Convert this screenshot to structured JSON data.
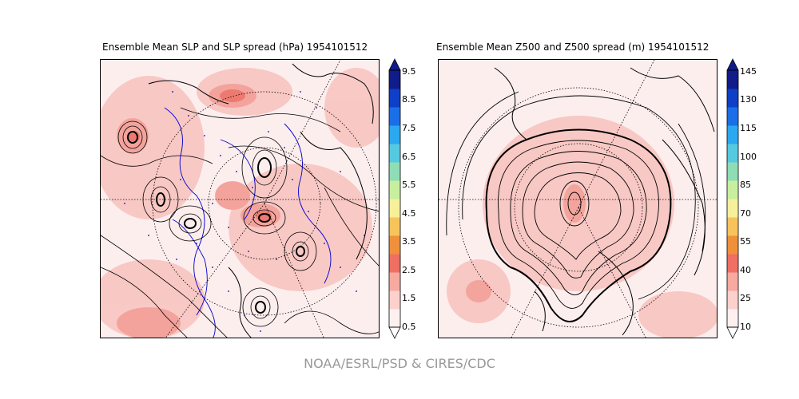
{
  "panels": [
    {
      "title": "Ensemble Mean SLP and SLP spread (hPa) 1954101512",
      "colorbar_ticks": [
        "9.5",
        "8.5",
        "7.5",
        "6.5",
        "5.5",
        "4.5",
        "3.5",
        "2.5",
        "1.5",
        "0.5"
      ]
    },
    {
      "title": "Ensemble Mean Z500 and Z500 spread (m) 1954101512",
      "colorbar_ticks": [
        "145",
        "130",
        "115",
        "100",
        "85",
        "70",
        "55",
        "40",
        "25",
        "10"
      ]
    }
  ],
  "colorbar_colors": [
    "#fff0f0",
    "#fdd0cc",
    "#f8a9a0",
    "#ef6f63",
    "#f0903a",
    "#f6c45a",
    "#f7f09a",
    "#c8ef9e",
    "#8eddb4",
    "#55c9e0",
    "#2aa8f0",
    "#1a6fe8",
    "#0e3fc8",
    "#101c8a"
  ],
  "credit": "NOAA/ESRL/PSD & CIRES/CDC"
}
